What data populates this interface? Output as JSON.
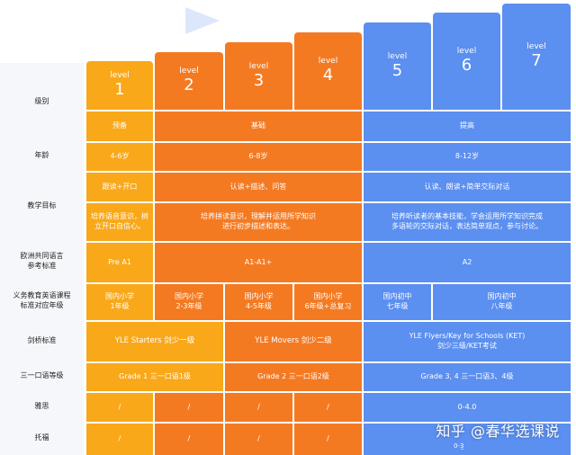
{
  "levels": [
    {
      "word": "level",
      "num": "1"
    },
    {
      "word": "level",
      "num": "2"
    },
    {
      "word": "level",
      "num": "3"
    },
    {
      "word": "level",
      "num": "4"
    },
    {
      "word": "level",
      "num": "5"
    },
    {
      "word": "level",
      "num": "6"
    },
    {
      "word": "level",
      "num": "7"
    }
  ],
  "rows": {
    "level": "级别",
    "stage": {
      "yellow": "预备",
      "orange": "基础",
      "blue": "提高"
    },
    "age": {
      "label": "年龄",
      "yellow": "4-6岁",
      "orange": "6-8岁",
      "blue": "8-12岁"
    },
    "goal": {
      "label": "教学目标",
      "yellow_top": "跟读+开口",
      "orange_top": "认读+描述、问答",
      "blue_top": "认读、朗读+简单交际对话",
      "yellow_bottom": "培养语音意识，树\n立开口自信心。",
      "orange_bottom": "培养拼读意识，理解并运用所学知识\n进行初步描述和表达。",
      "blue_bottom": "培养听读者的基本技能，学会运用所学知识完成\n多语轮的交际对话，表达简单观点，参与讨论。"
    },
    "cefr": {
      "label": "欧洲共同语言\n参考标准",
      "yellow": "Pre A1",
      "orange": "A1-A1+",
      "blue": "A2"
    },
    "curriculum": {
      "label": "义务教育英语课程\n标准对应年级",
      "l1": "国内小学\n1年级",
      "l2": "国内小学\n2-3年级",
      "l3": "国内小学\n4-5年级",
      "l4": "国内小学\n6年级+总复习",
      "l5": "国内初中\n七年级",
      "l67": "国内初中\n八年级"
    },
    "cambridge": {
      "label": "剑桥标准",
      "yellow": "YLE Starters 剑少一级",
      "orange": "YLE Movers 剑少二级",
      "blue": "YLE Flyers/Key for Schools (KET)\n剑少三级/KET考试"
    },
    "trinity": {
      "label": "三一口语等级",
      "yellow": "Grade 1 三一口语1级",
      "orange": "Grade 2 三一口语2级",
      "blue": "Grade 3, 4 三一口语3、4级"
    },
    "ielts": {
      "label": "雅思",
      "slash": "/",
      "blue": "0-4.0"
    },
    "toefl": {
      "label": "托福",
      "slash": "/",
      "blue": "0-3̲"
    }
  },
  "watermark": "知乎 @春华选课说",
  "colors": {
    "yellow": "#f9a81a",
    "orange": "#f47a22",
    "blue": "#5b8ff0",
    "label_bg": "#f6f7fb"
  }
}
